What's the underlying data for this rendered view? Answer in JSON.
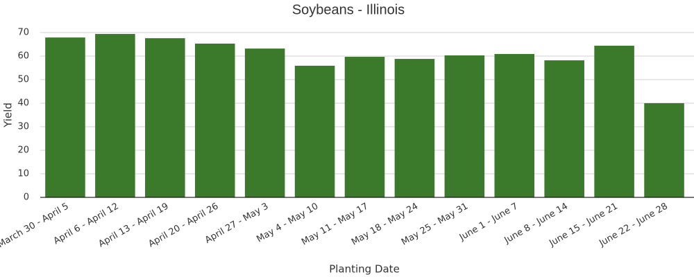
{
  "chart_data": {
    "type": "bar",
    "title": "Soybeans - Illinois",
    "x_label": "Planting Date",
    "y_label": "Yield",
    "categories": [
      "March 30 - April 5",
      "April 6 - April 12",
      "April 13 - April 19",
      "April 20 - April 26",
      "April 27 - May 3",
      "May 4 - May 10",
      "May 11 - May 17",
      "May 18 - May 24",
      "May 25 - May 31",
      "June 1 - June 7",
      "June 8 - June 14",
      "June 15 - June 21",
      "June 22 - June 28"
    ],
    "values": [
      67.9,
      69.4,
      67.6,
      65.3,
      63.2,
      55.9,
      59.7,
      58.8,
      60.3,
      60.9,
      58.2,
      64.4,
      40.0
    ],
    "color": "#3b7a2b",
    "ylim": [
      0,
      70
    ],
    "yticks": [
      0,
      10,
      20,
      30,
      40,
      50,
      60,
      70
    ],
    "grid": true
  }
}
